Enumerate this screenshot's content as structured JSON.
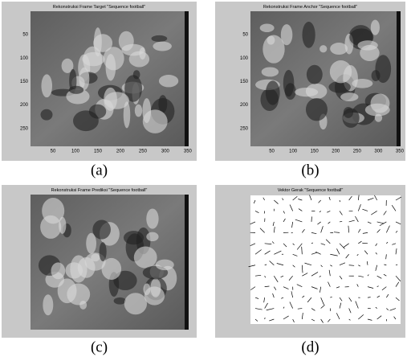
{
  "panels": [
    {
      "title": "Rekonstruksi Frame Target \"Sequence football\"",
      "xticks": [
        "50",
        "100",
        "150",
        "200",
        "250",
        "300",
        "350"
      ],
      "yticks": [
        "50",
        "100",
        "150",
        "200",
        "250"
      ],
      "caption": "(a)"
    },
    {
      "title": "Rekonstruksi Frame Anchor \"Sequence football\"",
      "xticks": [
        "50",
        "100",
        "150",
        "200",
        "250",
        "300",
        "350"
      ],
      "yticks": [
        "50",
        "100",
        "150",
        "200",
        "250"
      ],
      "caption": "(b)"
    },
    {
      "title": "Rekonstruksi Frame Prediksi \"Sequence football\"",
      "caption": "(c)"
    },
    {
      "title": "Vektor Gerak \"Sequence football\"",
      "caption": "(d)"
    }
  ]
}
